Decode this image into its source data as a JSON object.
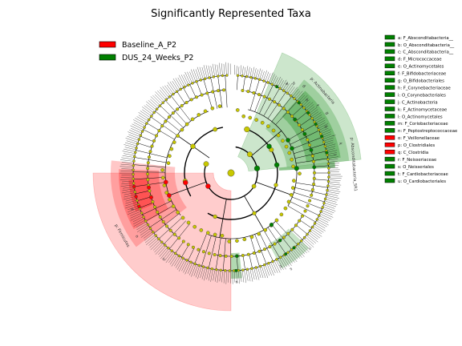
{
  "chart_data": {
    "type": "cladogram",
    "title": "Significantly Represented Taxa",
    "groups": [
      {
        "name": "Baseline_A_P2",
        "color": "#ff0000"
      },
      {
        "name": "DUS_24_Weeks_P2",
        "color": "#008000"
      }
    ],
    "neutral_node_color": "#c8c800",
    "clade_labels": [
      {
        "text": "p: Actinobacteria",
        "group": "DUS_24_Weeks_P2"
      },
      {
        "text": "p: Absconditabacteria_SR1",
        "group": "DUS_24_Weeks_P2"
      },
      {
        "text": "p: Firmicutes",
        "group": "Baseline_A_P2"
      }
    ],
    "key": [
      {
        "letter": "a",
        "label": "a: F_Absconditabacteria__",
        "group": "DUS_24_Weeks_P2"
      },
      {
        "letter": "b",
        "label": "b: O_Absconditabacteria__",
        "group": "DUS_24_Weeks_P2"
      },
      {
        "letter": "c",
        "label": "c: C_Absconditabacteria__",
        "group": "DUS_24_Weeks_P2"
      },
      {
        "letter": "d",
        "label": "d: F_Micrococcaceae",
        "group": "DUS_24_Weeks_P2"
      },
      {
        "letter": "e",
        "label": "e: O_Actinomycetales",
        "group": "DUS_24_Weeks_P2"
      },
      {
        "letter": "f",
        "label": "f: F_Bifidobacteriaceae",
        "group": "DUS_24_Weeks_P2"
      },
      {
        "letter": "g",
        "label": "g: O_Bifidobacteriales",
        "group": "DUS_24_Weeks_P2"
      },
      {
        "letter": "h",
        "label": "h: F_Corynebacteriaceae",
        "group": "DUS_24_Weeks_P2"
      },
      {
        "letter": "i",
        "label": "i: O_Corynebacteriales",
        "group": "DUS_24_Weeks_P2"
      },
      {
        "letter": "j",
        "label": "j: C_Actinobacteria",
        "group": "DUS_24_Weeks_P2"
      },
      {
        "letter": "k",
        "label": "k: F_Actinomycetaceae",
        "group": "DUS_24_Weeks_P2"
      },
      {
        "letter": "l",
        "label": "l: O_Actinomycetales",
        "group": "DUS_24_Weeks_P2"
      },
      {
        "letter": "m",
        "label": "m: F_Coriobacteriaceae",
        "group": "DUS_24_Weeks_P2"
      },
      {
        "letter": "n",
        "label": "n: F_Peptostreptococcaceae",
        "group": "DUS_24_Weeks_P2"
      },
      {
        "letter": "o",
        "label": "o: F_Veillonellaceae",
        "group": "Baseline_A_P2"
      },
      {
        "letter": "p",
        "label": "p: O_Clostridiales",
        "group": "Baseline_A_P2"
      },
      {
        "letter": "q",
        "label": "q: C_Clostridia",
        "group": "Baseline_A_P2"
      },
      {
        "letter": "r",
        "label": "r: F_Neisseriaceae",
        "group": "DUS_24_Weeks_P2"
      },
      {
        "letter": "s",
        "label": "s: O_Neisseriales",
        "group": "DUS_24_Weeks_P2"
      },
      {
        "letter": "t",
        "label": "t: F_Cardiobacteriaceae",
        "group": "DUS_24_Weeks_P2"
      },
      {
        "letter": "u",
        "label": "u: O_Cardiobacteriales",
        "group": "DUS_24_Weeks_P2"
      }
    ],
    "inner_ring_letters": [
      "a",
      "b",
      "d",
      "e",
      "f",
      "g",
      "h",
      "i",
      "k",
      "l",
      "n",
      "o",
      "p",
      "r",
      "s",
      "t",
      "u"
    ],
    "grid": false,
    "legend_position": "top-left",
    "key_position": "right"
  }
}
